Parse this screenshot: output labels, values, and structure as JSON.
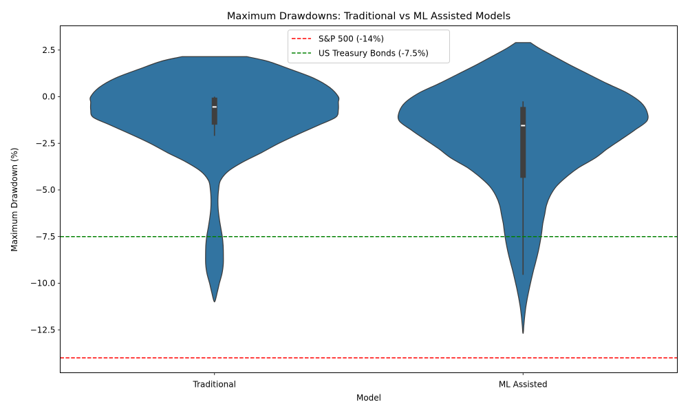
{
  "chart_data": {
    "type": "violin",
    "title": "Maximum Drawdowns: Traditional vs ML Assisted Models",
    "xlabel": "Model",
    "ylabel": "Maximum Drawdown (%)",
    "ylim": [
      -14.8,
      3.8
    ],
    "yticks": [
      2.5,
      0.0,
      -2.5,
      -5.0,
      -7.5,
      -10.0,
      -12.5
    ],
    "ytick_labels": [
      "2.5",
      "0.0",
      "−2.5",
      "−5.0",
      "−7.5",
      "−10.0",
      "−12.5"
    ],
    "categories": [
      "Traditional",
      "ML Assisted"
    ],
    "violin_color": "#3274a1",
    "edge_color": "#3a3a3a",
    "grid": false,
    "legend_position": "top-center",
    "series": [
      {
        "category": "Traditional",
        "q1": -1.5,
        "median": -0.55,
        "q3": -0.05,
        "whisker_low": -2.1,
        "whisker_high": 0.0,
        "density": [
          [
            2.15,
            0.26
          ],
          [
            1.9,
            0.43
          ],
          [
            1.5,
            0.6
          ],
          [
            1.0,
            0.8
          ],
          [
            0.5,
            0.93
          ],
          [
            0.0,
            1.0
          ],
          [
            -0.3,
            1.0
          ],
          [
            -0.7,
            1.0
          ],
          [
            -1.1,
            0.98
          ],
          [
            -1.5,
            0.85
          ],
          [
            -2.0,
            0.68
          ],
          [
            -2.5,
            0.52
          ],
          [
            -3.0,
            0.38
          ],
          [
            -3.5,
            0.23
          ],
          [
            -4.0,
            0.11
          ],
          [
            -4.5,
            0.048
          ],
          [
            -5.0,
            0.033
          ],
          [
            -5.5,
            0.028
          ],
          [
            -6.0,
            0.03
          ],
          [
            -6.5,
            0.038
          ],
          [
            -7.0,
            0.05
          ],
          [
            -7.5,
            0.063
          ],
          [
            -8.0,
            0.07
          ],
          [
            -8.5,
            0.072
          ],
          [
            -9.0,
            0.071
          ],
          [
            -9.5,
            0.06
          ],
          [
            -10.0,
            0.04
          ],
          [
            -10.5,
            0.022
          ],
          [
            -10.95,
            0.005
          ]
        ]
      },
      {
        "category": "ML Assisted",
        "q1": -4.35,
        "median": -1.55,
        "q3": -0.55,
        "whisker_low": -9.55,
        "whisker_high": -0.25,
        "density": [
          [
            2.9,
            0.06
          ],
          [
            2.6,
            0.13
          ],
          [
            2.2,
            0.24
          ],
          [
            1.7,
            0.38
          ],
          [
            1.2,
            0.53
          ],
          [
            0.7,
            0.68
          ],
          [
            0.2,
            0.84
          ],
          [
            -0.3,
            0.95
          ],
          [
            -0.8,
            1.0
          ],
          [
            -1.3,
            1.0
          ],
          [
            -1.8,
            0.9
          ],
          [
            -2.3,
            0.79
          ],
          [
            -2.8,
            0.68
          ],
          [
            -3.3,
            0.58
          ],
          [
            -3.8,
            0.45
          ],
          [
            -4.3,
            0.35
          ],
          [
            -4.8,
            0.27
          ],
          [
            -5.3,
            0.22
          ],
          [
            -5.8,
            0.19
          ],
          [
            -6.3,
            0.175
          ],
          [
            -6.8,
            0.16
          ],
          [
            -7.3,
            0.15
          ],
          [
            -7.8,
            0.138
          ],
          [
            -8.3,
            0.123
          ],
          [
            -8.8,
            0.105
          ],
          [
            -9.3,
            0.085
          ],
          [
            -9.8,
            0.067
          ],
          [
            -10.3,
            0.05
          ],
          [
            -10.8,
            0.035
          ],
          [
            -11.3,
            0.022
          ],
          [
            -11.8,
            0.013
          ],
          [
            -12.3,
            0.006
          ],
          [
            -12.65,
            0.002
          ]
        ]
      }
    ],
    "reference_lines": [
      {
        "label": "S&P 500 (-14%)",
        "y": -14,
        "color": "#ff0000",
        "style": "dashed"
      },
      {
        "label": "US Treasury Bonds (-7.5%)",
        "y": -7.5,
        "color": "#008000",
        "style": "dashed"
      }
    ]
  }
}
